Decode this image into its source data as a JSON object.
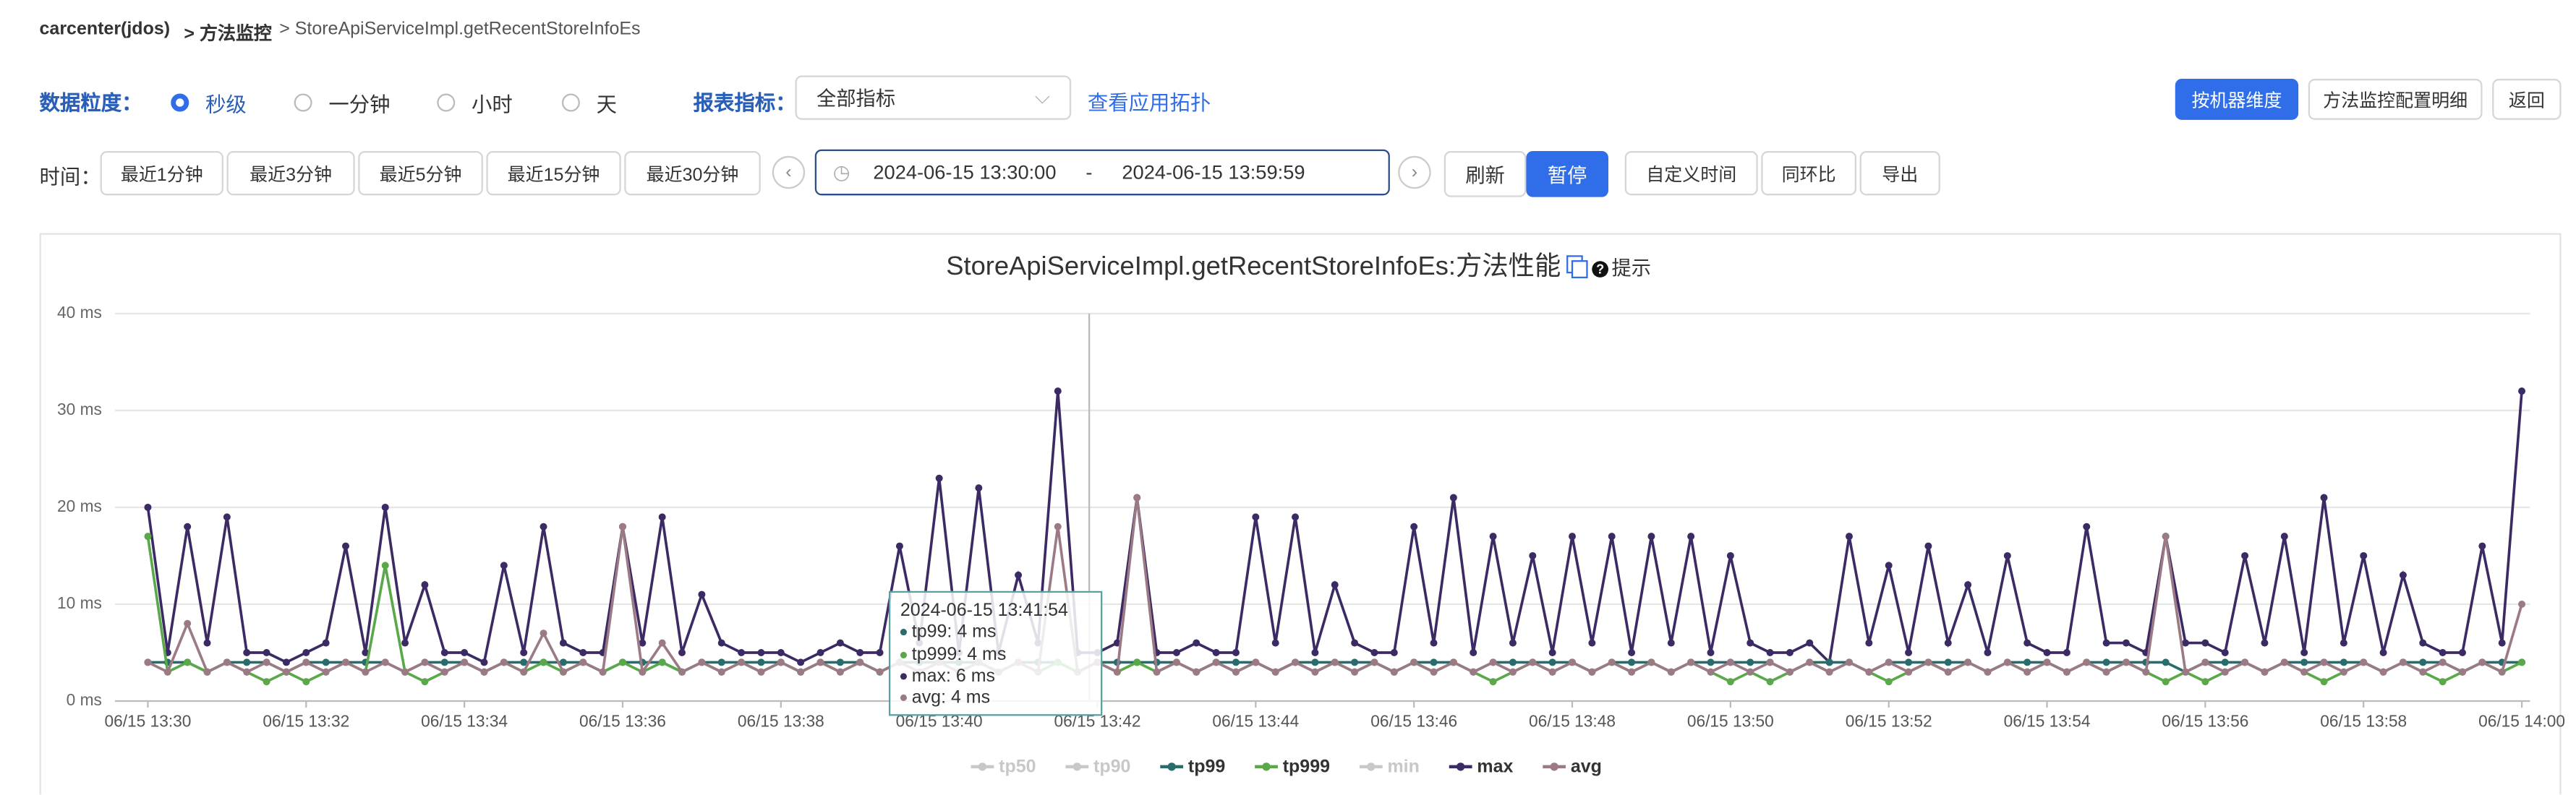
{
  "ui": {
    "breadcrumb": [
      "carcenter(jdos)",
      "> 方法监控",
      "> StoreApiServiceImpl.getRecentStoreInfoEs"
    ],
    "granularity_label": "数据粒度：",
    "granularity_options": [
      "秒级",
      "一分钟",
      "小时",
      "天"
    ],
    "metric_label": "报表指标：",
    "metric_select": "全部指标",
    "topology_link": "查看应用拓扑",
    "top_buttons": [
      "按机器维度",
      "方法监控配置明细",
      "返回"
    ],
    "time_label": "时间：",
    "quick_ranges": [
      "最近1分钟",
      "最近3分钟",
      "最近5分钟",
      "最近15分钟",
      "最近30分钟"
    ],
    "range_start": "2024-06-15 13:30:00",
    "range_sep": "-",
    "range_end": "2024-06-15 13:59:59",
    "refresh": "刷新",
    "pause": "暂停",
    "tools": [
      "自定义时间",
      "同环比",
      "导出"
    ],
    "hint": "提示"
  },
  "chart_data": {
    "type": "line",
    "title": "StoreApiServiceImpl.getRecentStoreInfoEs:方法性能",
    "x": [
      0,
      0.25,
      0.5,
      0.75,
      1,
      1.25,
      1.5,
      1.75,
      2,
      2.25,
      2.5,
      2.75,
      3,
      3.25,
      3.5,
      3.75,
      4,
      4.25,
      4.5,
      4.75,
      5,
      5.25,
      5.5,
      5.75,
      6,
      6.25,
      6.5,
      6.75,
      7,
      7.25,
      7.5,
      7.75,
      8,
      8.25,
      8.5,
      8.75,
      9,
      9.25,
      9.5,
      9.75,
      10,
      10.25,
      10.5,
      10.75,
      11,
      11.25,
      11.5,
      11.75,
      12,
      12.25,
      12.5,
      12.75,
      13,
      13.25,
      13.5,
      13.75,
      14,
      14.25,
      14.5,
      14.75,
      15,
      15.25,
      15.5,
      15.75,
      16,
      16.25,
      16.5,
      16.75,
      17,
      17.25,
      17.5,
      17.75,
      18,
      18.25,
      18.5,
      18.75,
      19,
      19.25,
      19.5,
      19.75,
      20,
      20.25,
      20.5,
      20.75,
      21,
      21.25,
      21.5,
      21.75,
      22,
      22.25,
      22.5,
      22.75,
      23,
      23.25,
      23.5,
      23.75,
      24,
      24.25,
      24.5,
      24.75,
      25,
      25.25,
      25.5,
      25.75,
      26,
      26.25,
      26.5,
      26.75,
      27,
      27.25,
      27.5,
      27.75,
      28,
      28.25,
      28.5,
      28.75,
      29,
      29.25,
      29.5,
      29.75,
      30
    ],
    "xlim": [
      0,
      30
    ],
    "xticks": [
      {
        "value": 0,
        "label": "06/15 13:30"
      },
      {
        "value": 2,
        "label": "06/15 13:32"
      },
      {
        "value": 4,
        "label": "06/15 13:34"
      },
      {
        "value": 6,
        "label": "06/15 13:36"
      },
      {
        "value": 8,
        "label": "06/15 13:38"
      },
      {
        "value": 10,
        "label": "06/15 13:40"
      },
      {
        "value": 12,
        "label": "06/15 13:42"
      },
      {
        "value": 14,
        "label": "06/15 13:44"
      },
      {
        "value": 16,
        "label": "06/15 13:46"
      },
      {
        "value": 18,
        "label": "06/15 13:48"
      },
      {
        "value": 20,
        "label": "06/15 13:50"
      },
      {
        "value": 22,
        "label": "06/15 13:52"
      },
      {
        "value": 24,
        "label": "06/15 13:54"
      },
      {
        "value": 26,
        "label": "06/15 13:56"
      },
      {
        "value": 28,
        "label": "06/15 13:58"
      },
      {
        "value": 30,
        "label": "06/15 14:00"
      }
    ],
    "ylim": [
      0,
      40
    ],
    "yticks": [
      {
        "value": 0,
        "label": "0 ms"
      },
      {
        "value": 10,
        "label": "10 ms"
      },
      {
        "value": 20,
        "label": "20 ms"
      },
      {
        "value": 30,
        "label": "30 ms"
      },
      {
        "value": 40,
        "label": "40 ms"
      }
    ],
    "grid": true,
    "series": [
      {
        "name": "tp50",
        "color": "#c8c8c8",
        "hidden": true
      },
      {
        "name": "tp90",
        "color": "#c8c8c8",
        "hidden": true
      },
      {
        "name": "tp99",
        "color": "#2a6b6b",
        "values": [
          4,
          4,
          4,
          3,
          4,
          4,
          4,
          3,
          4,
          4,
          4,
          4,
          4,
          3,
          4,
          4,
          4,
          3,
          4,
          4,
          4,
          4,
          4,
          3,
          4,
          4,
          4,
          3,
          4,
          4,
          4,
          4,
          4,
          3,
          4,
          4,
          4,
          3,
          4,
          4,
          4,
          4,
          4,
          3,
          4,
          4,
          4,
          3,
          4,
          4,
          4,
          4,
          4,
          3,
          4,
          4,
          4,
          3,
          4,
          4,
          4,
          4,
          4,
          3,
          4,
          4,
          4,
          3,
          4,
          4,
          4,
          4,
          4,
          3,
          4,
          4,
          4,
          3,
          4,
          4,
          4,
          4,
          4,
          3,
          4,
          4,
          4,
          3,
          4,
          4,
          4,
          4,
          4,
          3,
          4,
          4,
          4,
          3,
          4,
          4,
          4,
          4,
          4,
          3,
          4,
          4,
          4,
          3,
          4,
          4,
          4,
          4,
          4,
          3,
          4,
          4,
          4,
          3,
          4,
          4,
          4
        ]
      },
      {
        "name": "tp999",
        "color": "#5aa84a",
        "values": [
          17,
          3,
          4,
          3,
          4,
          3,
          2,
          3,
          2,
          3,
          4,
          3,
          14,
          3,
          2,
          3,
          4,
          3,
          4,
          3,
          4,
          3,
          4,
          3,
          4,
          3,
          4,
          3,
          4,
          3,
          4,
          3,
          4,
          3,
          4,
          3,
          4,
          3,
          4,
          3,
          4,
          3,
          4,
          3,
          4,
          3,
          4,
          3,
          4,
          3,
          4,
          3,
          4,
          3,
          4,
          3,
          4,
          3,
          4,
          3,
          4,
          3,
          4,
          3,
          4,
          3,
          4,
          3,
          2,
          3,
          4,
          3,
          4,
          3,
          4,
          3,
          4,
          3,
          4,
          3,
          2,
          3,
          2,
          3,
          4,
          3,
          4,
          3,
          2,
          3,
          4,
          3,
          4,
          3,
          4,
          3,
          4,
          3,
          4,
          3,
          4,
          3,
          2,
          3,
          2,
          3,
          4,
          3,
          4,
          3,
          2,
          3,
          4,
          3,
          4,
          3,
          2,
          3,
          4,
          3,
          4
        ]
      },
      {
        "name": "min",
        "color": "#c8c8c8",
        "hidden": true
      },
      {
        "name": "max",
        "color": "#3b2a63",
        "values": [
          20,
          5,
          18,
          6,
          19,
          5,
          5,
          4,
          5,
          6,
          16,
          5,
          20,
          6,
          12,
          5,
          5,
          4,
          14,
          5,
          18,
          6,
          5,
          5,
          18,
          6,
          19,
          5,
          11,
          6,
          5,
          5,
          5,
          4,
          5,
          6,
          5,
          5,
          16,
          6,
          23,
          5,
          22,
          5,
          13,
          6,
          32,
          5,
          5,
          6,
          21,
          5,
          5,
          6,
          5,
          5,
          19,
          6,
          19,
          5,
          12,
          6,
          5,
          5,
          18,
          6,
          21,
          5,
          17,
          6,
          15,
          5,
          17,
          6,
          17,
          5,
          17,
          6,
          17,
          5,
          15,
          6,
          5,
          5,
          6,
          4,
          17,
          6,
          14,
          5,
          16,
          6,
          12,
          5,
          15,
          6,
          5,
          5,
          18,
          6,
          6,
          5,
          17,
          6,
          6,
          5,
          15,
          6,
          17,
          5,
          21,
          6,
          15,
          5,
          13,
          6,
          5,
          5,
          16,
          6,
          32
        ]
      },
      {
        "name": "avg",
        "color": "#9c7a85",
        "values": [
          4,
          3,
          8,
          3,
          4,
          3,
          4,
          3,
          4,
          3,
          4,
          3,
          4,
          3,
          4,
          3,
          4,
          3,
          4,
          3,
          7,
          3,
          4,
          3,
          18,
          3,
          6,
          3,
          4,
          3,
          4,
          3,
          4,
          3,
          4,
          3,
          4,
          3,
          4,
          3,
          4,
          3,
          4,
          3,
          4,
          3,
          18,
          3,
          4,
          3,
          21,
          3,
          4,
          3,
          4,
          3,
          4,
          3,
          4,
          3,
          4,
          3,
          4,
          3,
          4,
          3,
          4,
          3,
          4,
          3,
          4,
          3,
          4,
          3,
          4,
          3,
          4,
          3,
          4,
          3,
          4,
          3,
          4,
          3,
          4,
          3,
          4,
          3,
          4,
          3,
          4,
          3,
          4,
          3,
          4,
          3,
          4,
          3,
          4,
          3,
          4,
          3,
          17,
          3,
          4,
          3,
          4,
          3,
          4,
          3,
          4,
          3,
          4,
          3,
          4,
          3,
          4,
          3,
          4,
          3,
          10
        ]
      }
    ],
    "tooltip": {
      "title": "2024-06-15 13:41:54",
      "lines": [
        "tp99: 4 ms",
        "tp999: 4 ms",
        "max: 6 ms",
        "avg: 4 ms"
      ]
    }
  }
}
